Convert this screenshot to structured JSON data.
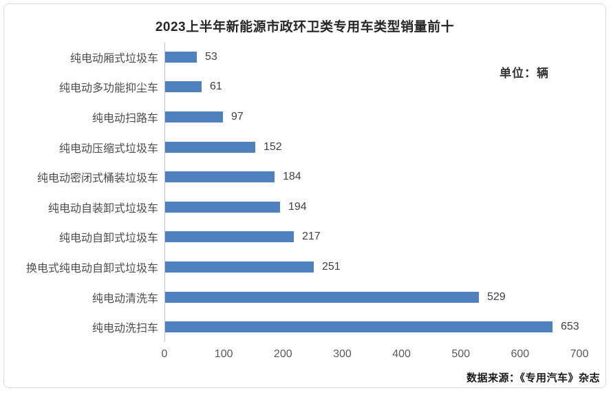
{
  "page": {
    "title": "2023上半年新能源市政环卫类专用车类型销量前十",
    "unit_label": "单位：辆",
    "source_label": "数据来源：《专用汽车》杂志"
  },
  "colors": {
    "bar": "#4e81bd",
    "axis_line": "#c6c1c1",
    "panel_border": "#e0dada",
    "title_text": "#262626",
    "category_text": "#4d4d4d",
    "value_text": "#404040",
    "tick_text": "#595959"
  },
  "chart_data": {
    "type": "bar",
    "orientation": "horizontal",
    "title": "2023上半年新能源市政环卫类专用车类型销量前十",
    "unit": "辆",
    "categories": [
      "纯电动厢式垃圾车",
      "纯电动多功能抑尘车",
      "纯电动扫路车",
      "纯电动压缩式垃圾车",
      "纯电动密闭式桶装垃圾车",
      "纯电动自装卸式垃圾车",
      "纯电动自卸式垃圾车",
      "换电式纯电动自卸式垃圾车",
      "纯电动清洗车",
      "纯电动洗扫车"
    ],
    "values": [
      53,
      61,
      97,
      152,
      184,
      194,
      217,
      251,
      529,
      653
    ],
    "xlim": [
      0,
      700
    ],
    "xticks": [
      0,
      100,
      200,
      300,
      400,
      500,
      600,
      700
    ],
    "grid": false,
    "legend": false,
    "value_labels": true,
    "source": "数据来源：《专用汽车》杂志"
  }
}
